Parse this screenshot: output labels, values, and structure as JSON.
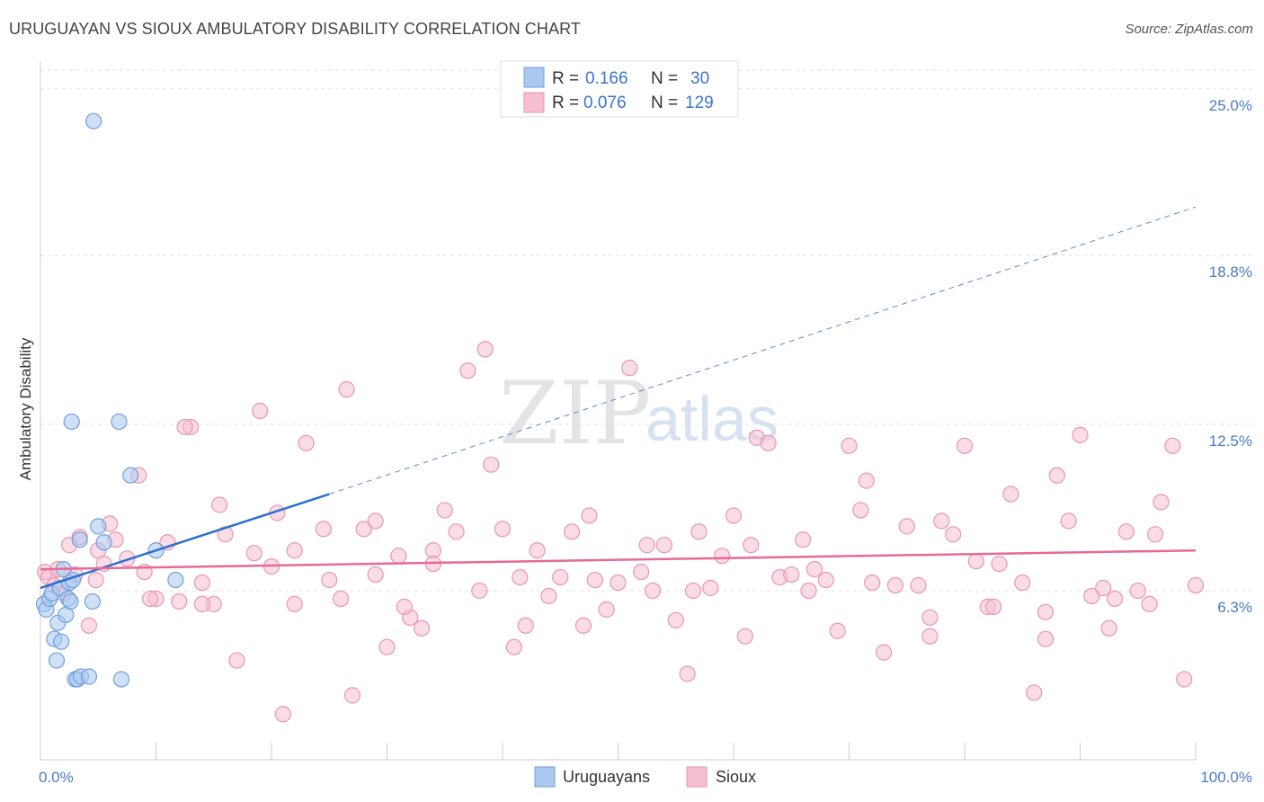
{
  "title": "URUGUAYAN VS SIOUX AMBULATORY DISABILITY CORRELATION CHART",
  "source": "Source: ZipAtlas.com",
  "colors": {
    "uruguayan_fill": "#aac8f0",
    "uruguayan_stroke": "#6fa0dc",
    "uruguayan_line": "#2d6fcf",
    "sioux_fill": "#f6bfd0",
    "sioux_stroke": "#e996b2",
    "sioux_line": "#e66a96",
    "tick_label": "#4a7cc7"
  },
  "legend": {
    "uruguayan": {
      "r_label": "R =",
      "r_value": "0.166",
      "n_label": "N =",
      "n_value": "30"
    },
    "sioux": {
      "r_label": "R =",
      "r_value": "0.076",
      "n_label": "N =",
      "n_value": "129"
    }
  },
  "watermark": {
    "zip": "ZIP",
    "atlas": "atlas"
  },
  "chart_data": {
    "type": "scatter",
    "title": "URUGUAYAN VS SIOUX AMBULATORY DISABILITY CORRELATION CHART",
    "xlabel": "",
    "ylabel": "Ambulatory Disability",
    "xlim": [
      0,
      100
    ],
    "ylim": [
      0,
      25.7
    ],
    "x_tick_labels": [
      "0.0%",
      "100.0%"
    ],
    "y_ticks": [
      6.3,
      12.5,
      18.8,
      25.0
    ],
    "y_tick_labels": [
      "6.3%",
      "12.5%",
      "18.8%",
      "25.0%"
    ],
    "grid": true,
    "legend_position": "top-center",
    "series": [
      {
        "name": "Uruguayans",
        "x": [
          0.3,
          0.5,
          0.8,
          1.0,
          1.2,
          1.4,
          1.5,
          1.7,
          1.8,
          2.0,
          2.2,
          2.4,
          2.5,
          2.6,
          2.7,
          2.8,
          3.0,
          3.2,
          3.4,
          3.5,
          4.2,
          4.5,
          4.6,
          5.0,
          5.5,
          6.8,
          7.0,
          7.8,
          10.0,
          11.7
        ],
        "y": [
          5.8,
          5.6,
          6.0,
          6.2,
          4.5,
          3.7,
          5.1,
          6.4,
          4.4,
          7.1,
          5.4,
          6.0,
          6.6,
          5.9,
          12.6,
          6.7,
          3.0,
          3.0,
          8.2,
          3.1,
          3.1,
          5.9,
          23.8,
          8.7,
          8.1,
          12.6,
          3.0,
          10.6,
          7.8,
          6.7
        ],
        "trend": {
          "x_start": 0,
          "y_start": 6.4,
          "x_solid_end": 25,
          "y_solid_end": 9.9,
          "x_end": 100,
          "y_end": 20.6
        }
      },
      {
        "name": "Sioux",
        "x": [
          0.4,
          0.7,
          1.2,
          1.5,
          2.0,
          2.5,
          3.0,
          3.4,
          4.2,
          4.8,
          5.0,
          5.5,
          6.5,
          7.5,
          8.5,
          9.0,
          10.0,
          11.0,
          12.0,
          13.0,
          14.0,
          15.0,
          16.0,
          17.0,
          18.5,
          19.0,
          20.0,
          21.0,
          22.0,
          23.0,
          25.0,
          26.0,
          27.0,
          28.0,
          29.0,
          30.0,
          31.0,
          32.0,
          33.0,
          34.0,
          35.0,
          36.0,
          37.0,
          38.0,
          39.0,
          40.0,
          41.0,
          42.0,
          43.0,
          44.0,
          45.0,
          46.0,
          47.0,
          48.0,
          49.0,
          50.0,
          51.0,
          52.0,
          53.0,
          54.0,
          55.0,
          56.0,
          57.0,
          58.0,
          59.0,
          60.0,
          61.0,
          62.0,
          63.0,
          64.0,
          65.0,
          66.0,
          67.0,
          68.0,
          69.0,
          70.0,
          71.0,
          72.0,
          73.0,
          74.0,
          75.0,
          76.0,
          77.0,
          78.0,
          79.0,
          80.0,
          81.0,
          82.0,
          83.0,
          84.0,
          85.0,
          86.0,
          87.0,
          88.0,
          89.0,
          90.0,
          91.0,
          92.0,
          93.0,
          94.0,
          95.0,
          96.0,
          97.0,
          98.0,
          99.0,
          100.0,
          6.0,
          9.5,
          12.5,
          15.5,
          20.5,
          24.5,
          26.5,
          29.0,
          34.0,
          38.5,
          41.5,
          47.5,
          52.5,
          56.5,
          61.5,
          66.5,
          71.5,
          77.0,
          82.5,
          87.0,
          92.5,
          96.5,
          14.0,
          22.0,
          31.5
        ],
        "y": [
          7.0,
          6.8,
          6.5,
          7.1,
          6.2,
          8.0,
          6.9,
          8.3,
          5.0,
          6.7,
          7.8,
          7.3,
          8.2,
          7.5,
          10.6,
          7.0,
          6.0,
          8.1,
          5.9,
          12.4,
          6.6,
          5.8,
          8.4,
          3.7,
          7.7,
          13.0,
          7.2,
          1.7,
          5.8,
          11.8,
          6.7,
          6.0,
          2.4,
          8.6,
          6.9,
          4.2,
          7.6,
          5.3,
          4.9,
          7.8,
          9.3,
          8.5,
          14.5,
          6.3,
          11.0,
          8.6,
          4.2,
          5.0,
          7.8,
          6.1,
          6.8,
          8.5,
          5.0,
          6.7,
          5.6,
          6.6,
          14.6,
          7.0,
          6.3,
          8.0,
          5.2,
          3.2,
          8.5,
          6.4,
          7.6,
          9.1,
          4.6,
          12.0,
          11.8,
          6.8,
          6.9,
          8.2,
          7.1,
          6.7,
          4.8,
          11.7,
          9.3,
          6.6,
          4.0,
          6.5,
          8.7,
          6.5,
          5.3,
          8.9,
          8.4,
          11.7,
          7.4,
          5.7,
          7.3,
          9.9,
          6.6,
          2.5,
          4.5,
          10.6,
          8.9,
          12.1,
          6.1,
          6.4,
          6.0,
          8.5,
          6.3,
          5.8,
          9.6,
          11.7,
          3.0,
          6.5,
          8.8,
          6.0,
          12.4,
          9.5,
          9.2,
          8.6,
          13.8,
          8.9,
          7.3,
          15.3,
          6.8,
          9.1,
          8.0,
          6.3,
          8.0,
          6.3,
          10.4,
          4.6,
          5.7,
          5.5,
          4.9,
          8.4,
          5.8,
          7.8,
          5.7
        ],
        "trend": {
          "x_start": 0,
          "y_start": 7.1,
          "x_end": 100,
          "y_end": 7.8
        }
      }
    ]
  }
}
